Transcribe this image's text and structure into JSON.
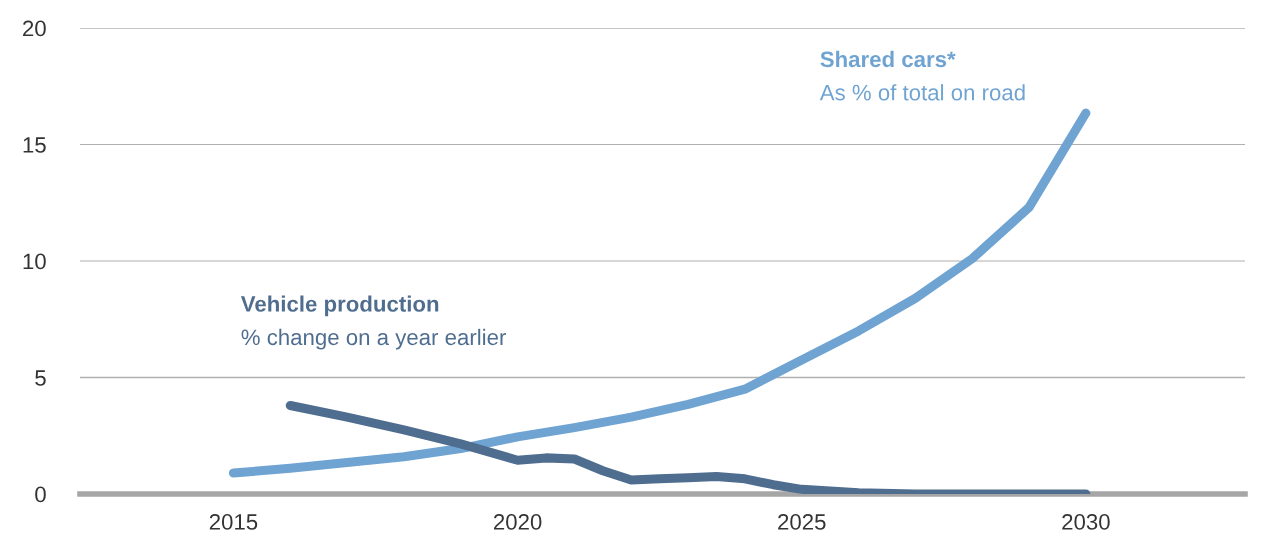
{
  "chart_data": {
    "type": "line",
    "xlim": [
      2012.3,
      2032.8
    ],
    "ylim": [
      0,
      20
    ],
    "xticks": [
      2015,
      2020,
      2025,
      2030
    ],
    "yticks": [
      0,
      5,
      10,
      15,
      20
    ],
    "grid": "y",
    "legend": false,
    "marker": "none",
    "line_style": "solid",
    "series": [
      {
        "name": "Shared cars*",
        "color": "#6fa3d2",
        "x": [
          2015,
          2016,
          2017,
          2018,
          2019,
          2020,
          2021,
          2022,
          2023,
          2024,
          2025,
          2026,
          2027,
          2028,
          2029,
          2030
        ],
        "values": [
          0.9,
          1.1,
          1.35,
          1.6,
          1.95,
          2.45,
          2.85,
          3.3,
          3.85,
          4.5,
          5.75,
          7.0,
          8.4,
          10.1,
          12.3,
          16.35
        ]
      },
      {
        "name": "Vehicle production",
        "color": "#4f6d8f",
        "x": [
          2016,
          2017,
          2018,
          2019,
          2020,
          2020.5,
          2021,
          2021.5,
          2022,
          2022.5,
          2023,
          2023.5,
          2024,
          2024.5,
          2025,
          2026,
          2027,
          2028,
          2029,
          2030
        ],
        "values": [
          3.8,
          3.3,
          2.75,
          2.15,
          1.45,
          1.55,
          1.5,
          1.0,
          0.6,
          0.65,
          0.7,
          0.75,
          0.65,
          0.4,
          0.2,
          0.05,
          0,
          0,
          0,
          0
        ]
      }
    ],
    "annotations": [
      "As % of total on road",
      "% change on a year earlier"
    ]
  }
}
